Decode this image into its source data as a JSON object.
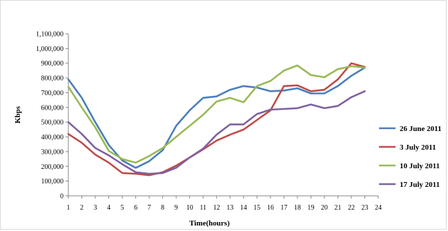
{
  "chart_data": {
    "type": "line",
    "title": "",
    "xlabel": "Time(hours)",
    "ylabel": "Kbps",
    "x": [
      1,
      2,
      3,
      4,
      5,
      6,
      7,
      8,
      9,
      10,
      11,
      12,
      13,
      14,
      15,
      16,
      17,
      18,
      19,
      20,
      21,
      22,
      23
    ],
    "xticks": [
      1,
      2,
      3,
      4,
      5,
      6,
      7,
      8,
      9,
      10,
      11,
      12,
      13,
      14,
      15,
      16,
      17,
      18,
      19,
      20,
      21,
      22,
      23,
      24
    ],
    "xlim": [
      1,
      24
    ],
    "ylim": [
      0,
      1100000
    ],
    "yticks": [
      0,
      100000,
      200000,
      300000,
      400000,
      500000,
      600000,
      700000,
      800000,
      900000,
      1000000,
      1100000
    ],
    "ytick_labels": [
      "0",
      "100,000",
      "200,000",
      "300,000",
      "400,000",
      "500,000",
      "600,000",
      "700,000",
      "800,000",
      "900,000",
      "1,000,000",
      "1,100,000"
    ],
    "grid": false,
    "legend_position": "right",
    "series": [
      {
        "name": "26 June 2011",
        "color": "#4a7ebb",
        "values": [
          790000,
          665000,
          500000,
          345000,
          240000,
          190000,
          235000,
          310000,
          475000,
          580000,
          665000,
          675000,
          720000,
          745000,
          735000,
          710000,
          715000,
          730000,
          695000,
          695000,
          745000,
          815000,
          870000
        ]
      },
      {
        "name": "3 July 2011",
        "color": "#be4b48",
        "values": [
          420000,
          360000,
          280000,
          225000,
          155000,
          150000,
          140000,
          160000,
          205000,
          260000,
          315000,
          375000,
          415000,
          450000,
          515000,
          580000,
          745000,
          750000,
          710000,
          720000,
          790000,
          900000,
          875000
        ]
      },
      {
        "name": "10 July 2011",
        "color": "#98b954",
        "values": [
          740000,
          600000,
          465000,
          305000,
          250000,
          225000,
          270000,
          325000,
          400000,
          475000,
          550000,
          640000,
          665000,
          635000,
          745000,
          780000,
          850000,
          885000,
          820000,
          805000,
          860000,
          880000,
          870000
        ]
      },
      {
        "name": "17 July 2011",
        "color": "#7d60a0",
        "values": [
          500000,
          420000,
          325000,
          275000,
          215000,
          160000,
          150000,
          155000,
          190000,
          260000,
          320000,
          415000,
          485000,
          485000,
          555000,
          585000,
          590000,
          595000,
          620000,
          595000,
          610000,
          670000,
          710000
        ]
      }
    ]
  }
}
